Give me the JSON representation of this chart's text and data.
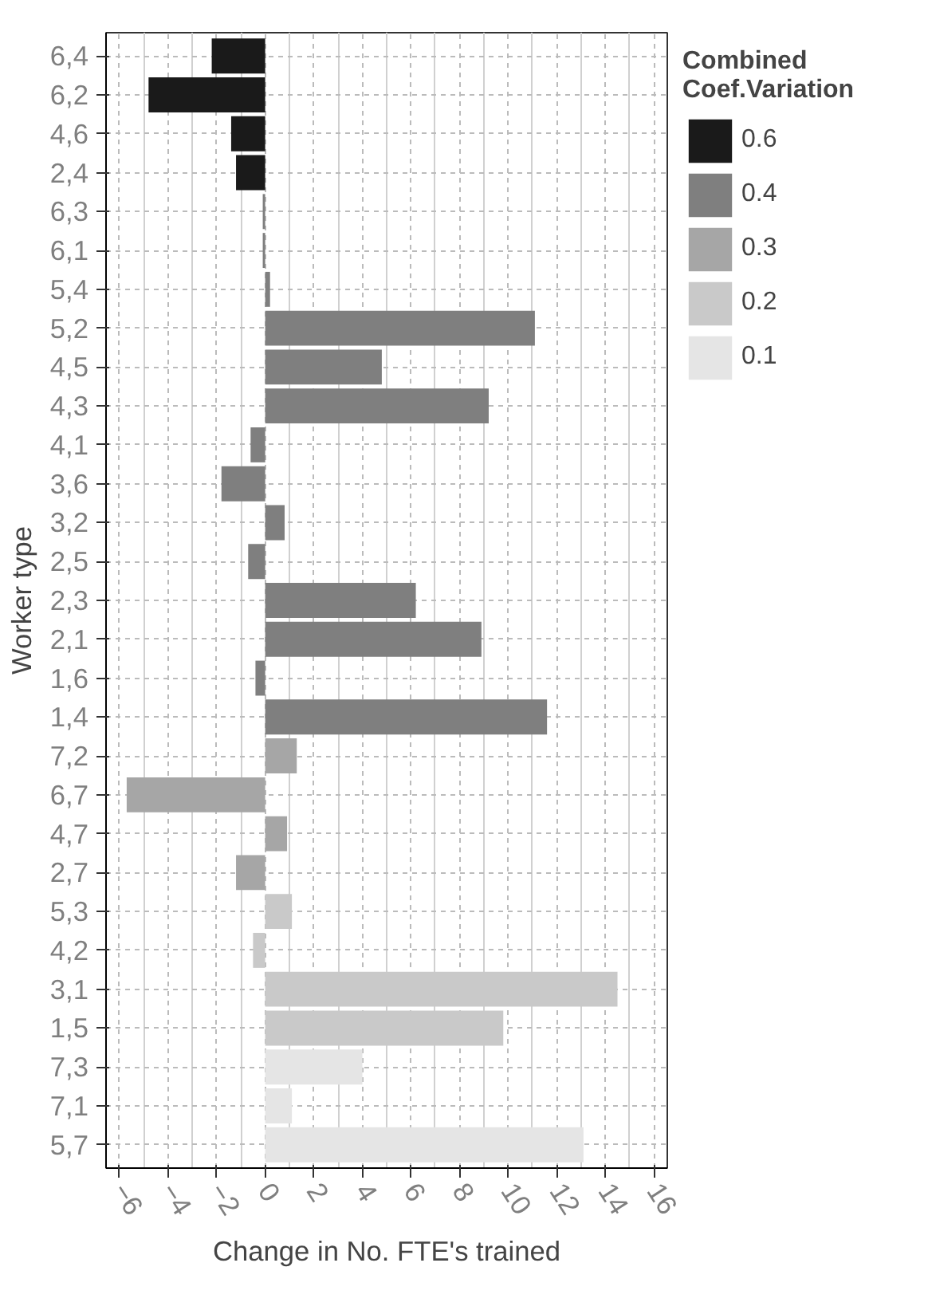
{
  "chart_data": {
    "type": "bar",
    "orientation": "horizontal",
    "xlabel": "Change in No. FTE's trained",
    "ylabel": "Worker type",
    "legend_title": "Combined\nCoef.Variation",
    "categories": [
      "6,4",
      "6,2",
      "4,6",
      "2,4",
      "6,3",
      "6,1",
      "5,4",
      "5,2",
      "4,5",
      "4,3",
      "4,1",
      "3,6",
      "3,2",
      "2,5",
      "2,3",
      "2,1",
      "1,6",
      "1,4",
      "7,2",
      "6,7",
      "4,7",
      "2,7",
      "5,3",
      "4,2",
      "3,1",
      "1,5",
      "7,3",
      "7,1",
      "5,7"
    ],
    "series": [
      {
        "name": "0.6",
        "color": "#1a1a1a",
        "values": [
          -2.2,
          -4.8,
          -1.4,
          -1.2,
          null,
          null,
          null,
          null,
          null,
          null,
          null,
          null,
          null,
          null,
          null,
          null,
          null,
          null,
          null,
          null,
          null,
          null,
          null,
          null,
          null,
          null,
          null,
          null,
          null
        ]
      },
      {
        "name": "0.4",
        "color": "#7f7f7f",
        "values": [
          null,
          null,
          null,
          null,
          -0.1,
          -0.1,
          0.2,
          11.1,
          4.8,
          9.2,
          -0.6,
          -1.8,
          0.8,
          -0.7,
          6.2,
          8.9,
          -0.4,
          11.6,
          null,
          null,
          null,
          null,
          null,
          null,
          null,
          null,
          null,
          null,
          null
        ]
      },
      {
        "name": "0.3",
        "color": "#a6a6a6",
        "values": [
          null,
          null,
          null,
          null,
          null,
          null,
          null,
          null,
          null,
          null,
          null,
          null,
          null,
          null,
          null,
          null,
          null,
          null,
          1.3,
          -5.7,
          0.9,
          -1.2,
          null,
          null,
          null,
          null,
          null,
          null,
          null
        ]
      },
      {
        "name": "0.2",
        "color": "#c9c9c9",
        "values": [
          null,
          null,
          null,
          null,
          null,
          null,
          null,
          null,
          null,
          null,
          null,
          null,
          null,
          null,
          null,
          null,
          null,
          null,
          null,
          null,
          null,
          null,
          1.1,
          -0.5,
          14.5,
          9.8,
          null,
          null,
          null
        ]
      },
      {
        "name": "0.1",
        "color": "#e5e5e5",
        "values": [
          null,
          null,
          null,
          null,
          null,
          null,
          null,
          null,
          null,
          null,
          null,
          null,
          null,
          null,
          null,
          null,
          null,
          null,
          null,
          null,
          null,
          null,
          null,
          null,
          null,
          null,
          4.0,
          1.1,
          13.1
        ]
      }
    ],
    "xlim": [
      -6.55,
      16.55
    ],
    "xticks": [
      -6,
      -4,
      -2,
      0,
      2,
      4,
      6,
      8,
      10,
      12,
      14,
      16
    ],
    "grid": true,
    "legend": "right"
  }
}
